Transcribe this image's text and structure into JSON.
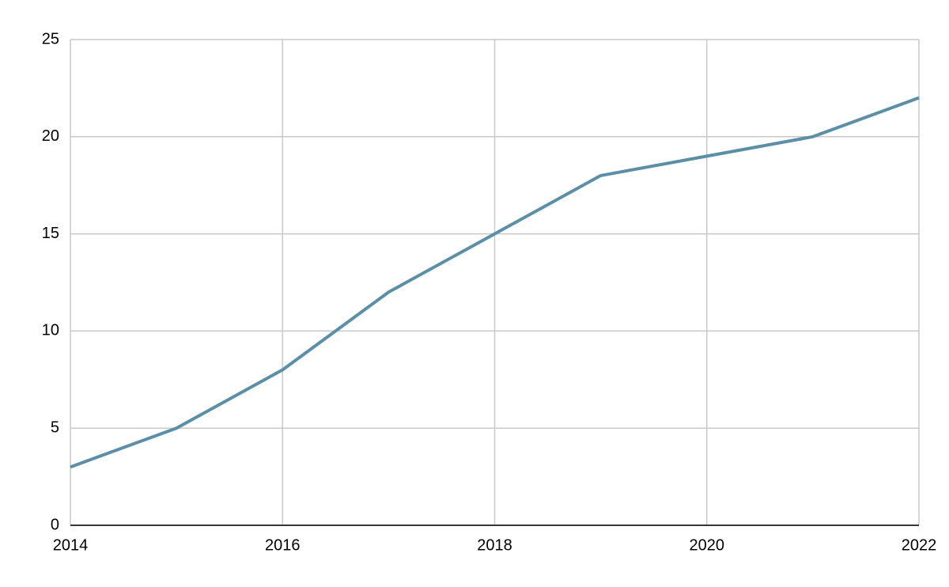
{
  "chart_data": {
    "type": "line",
    "x": [
      2014,
      2015,
      2016,
      2017,
      2018,
      2019,
      2020,
      2021,
      2022
    ],
    "values": [
      3,
      5,
      8,
      12,
      15,
      18,
      19,
      20,
      22
    ],
    "color": "#5b8fa8",
    "xlim": [
      2014,
      2022
    ],
    "xticks": [
      2014,
      2016,
      2018,
      2020,
      2022
    ],
    "ylim": [
      0,
      25
    ],
    "yticks": [
      0,
      5,
      10,
      15,
      20,
      25
    ],
    "grid": true
  }
}
